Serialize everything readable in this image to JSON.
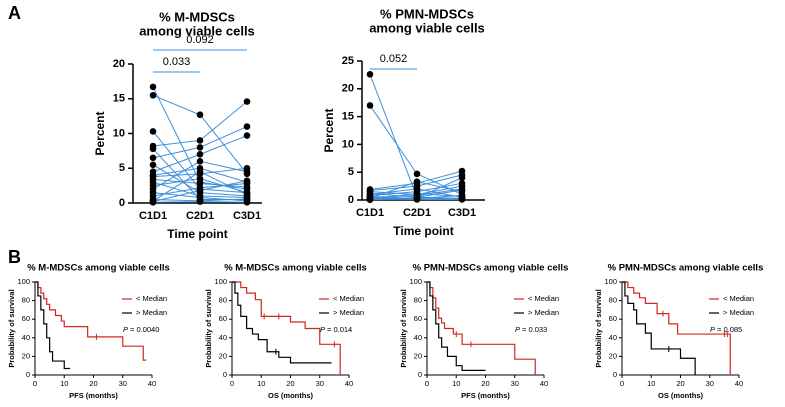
{
  "panels": [
    "A",
    "B"
  ],
  "chart_data": [
    {
      "type": "paired",
      "title": [
        "% M-MDSCs",
        "among viable cells"
      ],
      "ylabel": "Percent",
      "xlabel": "Time point",
      "categories": [
        "C1D1",
        "C2D1",
        "C3D1"
      ],
      "ylim": [
        0,
        20
      ],
      "yticks": [
        0,
        5,
        10,
        15,
        20
      ],
      "line_color": "#3d8fdc",
      "point_color": "#000000",
      "annotations": [
        {
          "text": "0.033",
          "from": 0,
          "to": 1
        },
        {
          "text": "0.092",
          "from": 0,
          "to": 2
        }
      ],
      "series": [
        {
          "values": [
            16.7,
            3,
            2
          ]
        },
        {
          "values": [
            15.5,
            12.7,
            4.2
          ]
        },
        {
          "values": [
            10.3,
            2,
            1.5
          ]
        },
        {
          "values": [
            8.2,
            9,
            14.6
          ]
        },
        {
          "values": [
            7.8,
            0.5,
            0.5
          ]
        },
        {
          "values": [
            6.5,
            8,
            11
          ]
        },
        {
          "values": [
            5.5,
            1.5,
            1
          ]
        },
        {
          "values": [
            4.5,
            7,
            9.7
          ]
        },
        {
          "values": [
            4,
            5,
            3
          ]
        },
        {
          "values": [
            3.8,
            4.2,
            5
          ]
        },
        {
          "values": [
            3.4,
            2.8,
            2.3
          ]
        },
        {
          "values": [
            3,
            1,
            0.8
          ]
        },
        {
          "values": [
            2.5,
            3.5,
            1.5
          ]
        },
        {
          "values": [
            2,
            6,
            4.5
          ]
        },
        {
          "values": [
            1.5,
            0.8,
            0.3
          ]
        },
        {
          "values": [
            1,
            2.2,
            2.8
          ]
        },
        {
          "values": [
            0.5,
            0.3,
            0.6
          ]
        },
        {
          "values": [
            0.3,
            4.5,
            1.2
          ]
        },
        {
          "values": [
            0.2,
            1.8,
            3.2
          ]
        },
        {
          "values": [
            0.1,
            0.2,
            0.1
          ]
        }
      ]
    },
    {
      "type": "paired",
      "title": [
        "% PMN-MDSCs",
        "among viable cells"
      ],
      "ylabel": "Percent",
      "xlabel": "Time point",
      "categories": [
        "C1D1",
        "C2D1",
        "C3D1"
      ],
      "ylim": [
        0,
        25
      ],
      "yticks": [
        0,
        5,
        10,
        15,
        20,
        25
      ],
      "line_color": "#3d8fdc",
      "point_color": "#000000",
      "annotations": [
        {
          "text": "0.052",
          "from": 0,
          "to": 1
        }
      ],
      "series": [
        {
          "values": [
            22.6,
            0.5,
            0.3
          ]
        },
        {
          "values": [
            17,
            4.7,
            1
          ]
        },
        {
          "values": [
            1.9,
            3,
            5.2
          ]
        },
        {
          "values": [
            1.7,
            2.5,
            4.5
          ]
        },
        {
          "values": [
            1.5,
            1,
            2.5
          ]
        },
        {
          "values": [
            1.2,
            0.5,
            1.8
          ]
        },
        {
          "values": [
            1,
            2,
            0.5
          ]
        },
        {
          "values": [
            0.8,
            1.5,
            3
          ]
        },
        {
          "values": [
            0.6,
            0.3,
            0.8
          ]
        },
        {
          "values": [
            0.5,
            0.8,
            2
          ]
        },
        {
          "values": [
            0.4,
            0.2,
            0.2
          ]
        },
        {
          "values": [
            0.3,
            3.3,
            1.5
          ]
        },
        {
          "values": [
            0.2,
            0.1,
            0.1
          ]
        },
        {
          "values": [
            0.1,
            1.2,
            0.6
          ]
        },
        {
          "values": [
            0.1,
            0.4,
            4
          ]
        },
        {
          "values": [
            0.05,
            0.2,
            0.3
          ]
        }
      ]
    },
    {
      "type": "survival",
      "title": "% M-MDSCs among viable cells",
      "ylabel": "Probability of survival",
      "xlabel": "PFS (months)",
      "xlim": [
        0,
        40
      ],
      "xticks": [
        0,
        10,
        20,
        30,
        40
      ],
      "ylim": [
        0,
        100
      ],
      "yticks": [
        0,
        20,
        40,
        60,
        80,
        100
      ],
      "pvalue": {
        "symbol": "P",
        "text": "= 0.0040"
      },
      "series": [
        {
          "name": "< Median",
          "color": "#d0281c",
          "x": [
            0,
            1,
            2,
            3,
            4,
            5,
            7,
            9,
            10,
            18,
            30,
            37,
            38
          ],
          "values": [
            100,
            94,
            88,
            82,
            76,
            70,
            64,
            58,
            52,
            41,
            31,
            16,
            16
          ],
          "censored": [
            21
          ]
        },
        {
          "name": "> Median",
          "color": "#000000",
          "x": [
            0,
            1,
            2,
            3,
            4,
            5,
            6,
            10,
            12
          ],
          "values": [
            100,
            85,
            70,
            55,
            40,
            25,
            15,
            7,
            7
          ],
          "censored": []
        }
      ]
    },
    {
      "type": "survival",
      "title": "% M-MDSCs among viable cells",
      "ylabel": "Probability of survival",
      "xlabel": "OS (months)",
      "xlim": [
        0,
        40
      ],
      "xticks": [
        0,
        10,
        20,
        30,
        40
      ],
      "ylim": [
        0,
        100
      ],
      "yticks": [
        0,
        20,
        40,
        60,
        80,
        100
      ],
      "pvalue": {
        "symbol": "P",
        "text": "= 0.014"
      },
      "series": [
        {
          "name": "< Median",
          "color": "#d0281c",
          "x": [
            0,
            3,
            5,
            8,
            10,
            15,
            20,
            25,
            30,
            37
          ],
          "values": [
            100,
            94,
            88,
            81,
            63,
            63,
            57,
            50,
            33,
            0
          ],
          "censored": [
            11,
            16,
            35
          ]
        },
        {
          "name": "> Median",
          "color": "#000000",
          "x": [
            0,
            1,
            2,
            3,
            5,
            7,
            9,
            12,
            16,
            20,
            34
          ],
          "values": [
            100,
            88,
            75,
            63,
            50,
            44,
            38,
            25,
            19,
            13,
            13
          ],
          "censored": [
            15
          ]
        }
      ]
    },
    {
      "type": "survival",
      "title": "% PMN-MDSCs among viable cells",
      "ylabel": "Probability of survival",
      "xlabel": "PFS (months)",
      "xlim": [
        0,
        40
      ],
      "xticks": [
        0,
        10,
        20,
        30,
        40
      ],
      "ylim": [
        0,
        100
      ],
      "yticks": [
        0,
        20,
        40,
        60,
        80,
        100
      ],
      "pvalue": {
        "symbol": "P",
        "text": "= 0.033"
      },
      "series": [
        {
          "name": "< Median",
          "color": "#d0281c",
          "x": [
            0,
            1,
            2,
            3,
            4,
            5,
            6,
            9,
            12,
            30,
            37
          ],
          "values": [
            100,
            94,
            83,
            72,
            61,
            56,
            50,
            44,
            33,
            17,
            0
          ],
          "censored": [
            10,
            15
          ]
        },
        {
          "name": "> Median",
          "color": "#000000",
          "x": [
            0,
            1,
            2,
            3,
            4,
            5,
            7,
            10,
            12,
            20
          ],
          "values": [
            100,
            85,
            70,
            55,
            40,
            30,
            20,
            10,
            5,
            5
          ],
          "censored": []
        }
      ]
    },
    {
      "type": "survival",
      "title": "% PMN-MDSCs among viable cells",
      "ylabel": "Probability of survival",
      "xlabel": "OS (months)",
      "xlim": [
        0,
        40
      ],
      "xticks": [
        0,
        10,
        20,
        30,
        40
      ],
      "ylim": [
        0,
        100
      ],
      "yticks": [
        0,
        20,
        40,
        60,
        80,
        100
      ],
      "pvalue": {
        "symbol": "P",
        "text": "= 0.085"
      },
      "series": [
        {
          "name": "< Median",
          "color": "#d0281c",
          "x": [
            0,
            2,
            4,
            6,
            8,
            12,
            16,
            19,
            30,
            37
          ],
          "values": [
            100,
            94,
            88,
            83,
            77,
            66,
            55,
            44,
            44,
            0
          ],
          "censored": [
            14,
            35,
            36
          ]
        },
        {
          "name": "> Median",
          "color": "#000000",
          "x": [
            0,
            1,
            2,
            4,
            5,
            8,
            10,
            12,
            20,
            25
          ],
          "values": [
            100,
            85,
            77,
            70,
            55,
            45,
            28,
            28,
            18,
            0
          ],
          "censored": [
            16
          ]
        }
      ]
    }
  ]
}
